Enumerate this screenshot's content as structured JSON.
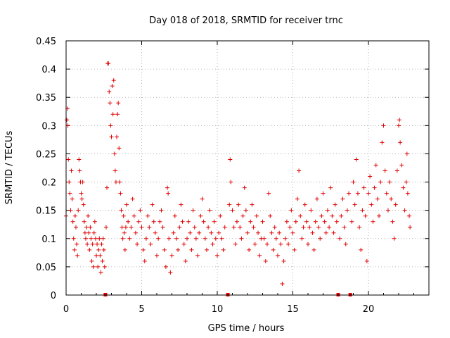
{
  "chart_data": {
    "type": "scatter",
    "title": "Day 018 of 2018, SRMTID for receiver trnc",
    "xlabel": "GPS time / hours",
    "ylabel": "SRMTID / TECUs",
    "xlim": [
      0,
      24
    ],
    "ylim": [
      0,
      0.45
    ],
    "xticks": [
      0,
      5,
      10,
      15,
      20
    ],
    "yticks": [
      0,
      0.05,
      0.1,
      0.15,
      0.2,
      0.25,
      0.3,
      0.35,
      0.4,
      0.45
    ],
    "xtick_labels": [
      "0",
      "5",
      "10",
      "15",
      "20"
    ],
    "ytick_labels": [
      "0",
      "0.05",
      "0.1",
      "0.15",
      "0.2",
      "0.25",
      "0.3",
      "0.35",
      "0.4",
      "0.45"
    ],
    "grid": true,
    "marker": "+",
    "color": "#e00000",
    "data_gaps_x": [
      2.6,
      10.7,
      18.0,
      18.8
    ],
    "series": [
      {
        "name": "SRMTID",
        "points": [
          [
            0.0,
            0.14
          ],
          [
            0.05,
            0.31
          ],
          [
            0.1,
            0.33
          ],
          [
            0.12,
            0.3
          ],
          [
            0.15,
            0.24
          ],
          [
            0.2,
            0.2
          ],
          [
            0.25,
            0.18
          ],
          [
            0.3,
            0.15
          ],
          [
            0.35,
            0.22
          ],
          [
            0.4,
            0.17
          ],
          [
            0.45,
            0.13
          ],
          [
            0.5,
            0.1
          ],
          [
            0.55,
            0.08
          ],
          [
            0.6,
            0.14
          ],
          [
            0.65,
            0.12
          ],
          [
            0.7,
            0.09
          ],
          [
            0.75,
            0.07
          ],
          [
            0.8,
            0.15
          ],
          [
            0.85,
            0.24
          ],
          [
            0.9,
            0.22
          ],
          [
            0.95,
            0.2
          ],
          [
            1.0,
            0.18
          ],
          [
            1.05,
            0.17
          ],
          [
            1.1,
            0.2
          ],
          [
            1.15,
            0.16
          ],
          [
            1.2,
            0.13
          ],
          [
            1.25,
            0.11
          ],
          [
            1.3,
            0.1
          ],
          [
            1.35,
            0.12
          ],
          [
            1.4,
            0.09
          ],
          [
            1.45,
            0.14
          ],
          [
            1.5,
            0.11
          ],
          [
            1.55,
            0.08
          ],
          [
            1.6,
            0.12
          ],
          [
            1.65,
            0.1
          ],
          [
            1.7,
            0.06
          ],
          [
            1.75,
            0.09
          ],
          [
            1.8,
            0.05
          ],
          [
            1.85,
            0.11
          ],
          [
            1.9,
            0.13
          ],
          [
            1.95,
            0.1
          ],
          [
            2.0,
            0.07
          ],
          [
            2.05,
            0.09
          ],
          [
            2.1,
            0.05
          ],
          [
            2.15,
            0.08
          ],
          [
            2.2,
            0.1
          ],
          [
            2.25,
            0.07
          ],
          [
            2.3,
            0.04
          ],
          [
            2.35,
            0.09
          ],
          [
            2.4,
            0.06
          ],
          [
            2.45,
            0.1
          ],
          [
            2.5,
            0.08
          ],
          [
            2.55,
            0.05
          ],
          [
            2.65,
            0.12
          ],
          [
            2.7,
            0.19
          ],
          [
            2.75,
            0.41
          ],
          [
            2.8,
            0.41
          ],
          [
            2.85,
            0.36
          ],
          [
            2.9,
            0.34
          ],
          [
            2.95,
            0.3
          ],
          [
            3.0,
            0.28
          ],
          [
            3.05,
            0.37
          ],
          [
            3.1,
            0.32
          ],
          [
            3.15,
            0.38
          ],
          [
            3.2,
            0.25
          ],
          [
            3.25,
            0.22
          ],
          [
            3.3,
            0.2
          ],
          [
            3.35,
            0.28
          ],
          [
            3.4,
            0.32
          ],
          [
            3.45,
            0.34
          ],
          [
            3.5,
            0.26
          ],
          [
            3.55,
            0.2
          ],
          [
            3.6,
            0.18
          ],
          [
            3.65,
            0.15
          ],
          [
            3.7,
            0.12
          ],
          [
            3.75,
            0.1
          ],
          [
            3.8,
            0.14
          ],
          [
            3.85,
            0.11
          ],
          [
            3.9,
            0.08
          ],
          [
            3.95,
            0.12
          ],
          [
            4.0,
            0.16
          ],
          [
            4.1,
            0.13
          ],
          [
            4.2,
            0.1
          ],
          [
            4.3,
            0.12
          ],
          [
            4.4,
            0.17
          ],
          [
            4.5,
            0.14
          ],
          [
            4.6,
            0.11
          ],
          [
            4.7,
            0.09
          ],
          [
            4.8,
            0.13
          ],
          [
            4.9,
            0.15
          ],
          [
            5.0,
            0.12
          ],
          [
            5.1,
            0.08
          ],
          [
            5.2,
            0.06
          ],
          [
            5.3,
            0.1
          ],
          [
            5.4,
            0.14
          ],
          [
            5.5,
            0.12
          ],
          [
            5.6,
            0.09
          ],
          [
            5.7,
            0.16
          ],
          [
            5.8,
            0.13
          ],
          [
            5.9,
            0.11
          ],
          [
            6.0,
            0.07
          ],
          [
            6.1,
            0.1
          ],
          [
            6.2,
            0.13
          ],
          [
            6.3,
            0.15
          ],
          [
            6.4,
            0.12
          ],
          [
            6.5,
            0.08
          ],
          [
            6.6,
            0.05
          ],
          [
            6.7,
            0.19
          ],
          [
            6.75,
            0.18
          ],
          [
            6.8,
            0.1
          ],
          [
            6.9,
            0.04
          ],
          [
            7.0,
            0.07
          ],
          [
            7.1,
            0.11
          ],
          [
            7.2,
            0.14
          ],
          [
            7.3,
            0.1
          ],
          [
            7.4,
            0.08
          ],
          [
            7.5,
            0.12
          ],
          [
            7.6,
            0.16
          ],
          [
            7.7,
            0.13
          ],
          [
            7.8,
            0.09
          ],
          [
            7.9,
            0.06
          ],
          [
            8.0,
            0.1
          ],
          [
            8.1,
            0.13
          ],
          [
            8.2,
            0.11
          ],
          [
            8.3,
            0.08
          ],
          [
            8.4,
            0.15
          ],
          [
            8.5,
            0.12
          ],
          [
            8.6,
            0.1
          ],
          [
            8.7,
            0.07
          ],
          [
            8.8,
            0.11
          ],
          [
            8.9,
            0.14
          ],
          [
            9.0,
            0.17
          ],
          [
            9.1,
            0.13
          ],
          [
            9.2,
            0.1
          ],
          [
            9.3,
            0.08
          ],
          [
            9.4,
            0.12
          ],
          [
            9.5,
            0.15
          ],
          [
            9.6,
            0.11
          ],
          [
            9.7,
            0.09
          ],
          [
            9.8,
            0.13
          ],
          [
            9.9,
            0.1
          ],
          [
            10.0,
            0.07
          ],
          [
            10.1,
            0.11
          ],
          [
            10.2,
            0.14
          ],
          [
            10.3,
            0.1
          ],
          [
            10.4,
            0.08
          ],
          [
            10.5,
            0.12
          ],
          [
            10.8,
            0.16
          ],
          [
            10.85,
            0.24
          ],
          [
            10.9,
            0.2
          ],
          [
            11.0,
            0.15
          ],
          [
            11.1,
            0.12
          ],
          [
            11.2,
            0.09
          ],
          [
            11.3,
            0.13
          ],
          [
            11.4,
            0.16
          ],
          [
            11.5,
            0.12
          ],
          [
            11.6,
            0.1
          ],
          [
            11.7,
            0.14
          ],
          [
            11.8,
            0.19
          ],
          [
            11.9,
            0.15
          ],
          [
            12.0,
            0.11
          ],
          [
            12.1,
            0.08
          ],
          [
            12.2,
            0.13
          ],
          [
            12.3,
            0.16
          ],
          [
            12.4,
            0.12
          ],
          [
            12.5,
            0.09
          ],
          [
            12.6,
            0.14
          ],
          [
            12.7,
            0.11
          ],
          [
            12.8,
            0.07
          ],
          [
            12.9,
            0.1
          ],
          [
            13.0,
            0.13
          ],
          [
            13.1,
            0.1
          ],
          [
            13.2,
            0.06
          ],
          [
            13.3,
            0.09
          ],
          [
            13.4,
            0.18
          ],
          [
            13.5,
            0.14
          ],
          [
            13.6,
            0.11
          ],
          [
            13.7,
            0.08
          ],
          [
            13.8,
            0.12
          ],
          [
            13.9,
            0.1
          ],
          [
            14.0,
            0.07
          ],
          [
            14.1,
            0.11
          ],
          [
            14.2,
            0.09
          ],
          [
            14.3,
            0.02
          ],
          [
            14.4,
            0.06
          ],
          [
            14.5,
            0.1
          ],
          [
            14.6,
            0.13
          ],
          [
            14.7,
            0.09
          ],
          [
            14.8,
            0.12
          ],
          [
            14.9,
            0.15
          ],
          [
            15.0,
            0.11
          ],
          [
            15.1,
            0.08
          ],
          [
            15.2,
            0.13
          ],
          [
            15.3,
            0.17
          ],
          [
            15.4,
            0.22
          ],
          [
            15.5,
            0.14
          ],
          [
            15.6,
            0.1
          ],
          [
            15.7,
            0.12
          ],
          [
            15.8,
            0.16
          ],
          [
            15.9,
            0.13
          ],
          [
            16.0,
            0.09
          ],
          [
            16.1,
            0.12
          ],
          [
            16.2,
            0.15
          ],
          [
            16.3,
            0.11
          ],
          [
            16.4,
            0.08
          ],
          [
            16.5,
            0.13
          ],
          [
            16.6,
            0.17
          ],
          [
            16.7,
            0.12
          ],
          [
            16.8,
            0.1
          ],
          [
            16.9,
            0.14
          ],
          [
            17.0,
            0.18
          ],
          [
            17.1,
            0.13
          ],
          [
            17.2,
            0.11
          ],
          [
            17.3,
            0.15
          ],
          [
            17.4,
            0.12
          ],
          [
            17.5,
            0.19
          ],
          [
            17.6,
            0.14
          ],
          [
            17.7,
            0.11
          ],
          [
            17.8,
            0.16
          ],
          [
            17.9,
            0.13
          ],
          [
            18.1,
            0.1
          ],
          [
            18.2,
            0.14
          ],
          [
            18.3,
            0.17
          ],
          [
            18.4,
            0.12
          ],
          [
            18.5,
            0.09
          ],
          [
            18.6,
            0.15
          ],
          [
            18.7,
            0.18
          ],
          [
            18.9,
            0.13
          ],
          [
            19.0,
            0.2
          ],
          [
            19.1,
            0.16
          ],
          [
            19.2,
            0.24
          ],
          [
            19.3,
            0.18
          ],
          [
            19.4,
            0.12
          ],
          [
            19.5,
            0.08
          ],
          [
            19.6,
            0.15
          ],
          [
            19.7,
            0.19
          ],
          [
            19.8,
            0.14
          ],
          [
            19.9,
            0.06
          ],
          [
            20.0,
            0.18
          ],
          [
            20.1,
            0.21
          ],
          [
            20.2,
            0.16
          ],
          [
            20.3,
            0.13
          ],
          [
            20.4,
            0.19
          ],
          [
            20.5,
            0.23
          ],
          [
            20.6,
            0.17
          ],
          [
            20.7,
            0.14
          ],
          [
            20.8,
            0.2
          ],
          [
            20.9,
            0.27
          ],
          [
            21.0,
            0.3
          ],
          [
            21.1,
            0.22
          ],
          [
            21.2,
            0.18
          ],
          [
            21.3,
            0.15
          ],
          [
            21.4,
            0.2
          ],
          [
            21.5,
            0.17
          ],
          [
            21.6,
            0.13
          ],
          [
            21.7,
            0.1
          ],
          [
            21.8,
            0.16
          ],
          [
            21.9,
            0.22
          ],
          [
            22.0,
            0.3
          ],
          [
            22.05,
            0.31
          ],
          [
            22.1,
            0.27
          ],
          [
            22.2,
            0.23
          ],
          [
            22.3,
            0.19
          ],
          [
            22.4,
            0.15
          ],
          [
            22.5,
            0.2
          ],
          [
            22.55,
            0.25
          ],
          [
            22.6,
            0.18
          ],
          [
            22.7,
            0.14
          ],
          [
            22.75,
            0.12
          ]
        ]
      }
    ]
  }
}
